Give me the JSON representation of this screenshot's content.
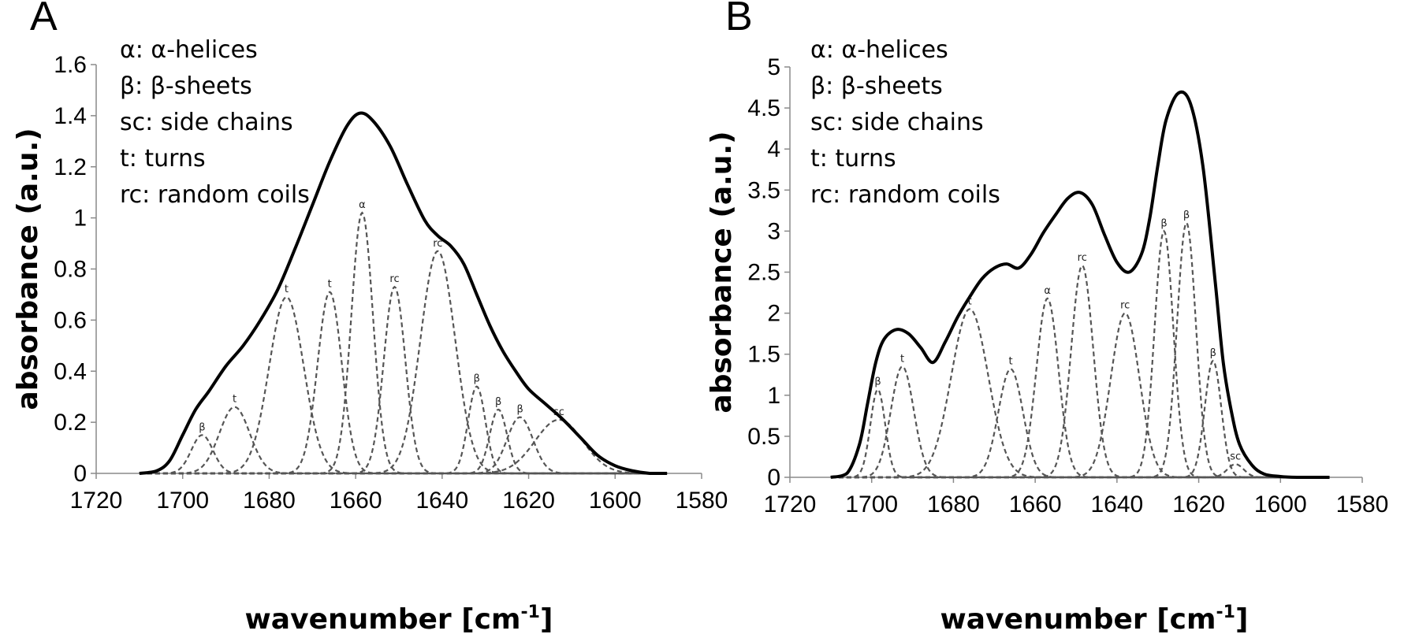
{
  "chart_data": [
    {
      "type": "line",
      "panel": "A",
      "xlabel": "wavenumber [cm-1]",
      "xlabel_main": "wavenumber [cm",
      "xlabel_sup": "-1",
      "xlabel_end": "]",
      "ylabel": "absorbance (a.u.)",
      "xlim": [
        1720,
        1580
      ],
      "ylim": [
        0,
        1.6
      ],
      "x_ticks": [
        1720,
        1700,
        1680,
        1660,
        1640,
        1620,
        1600,
        1580
      ],
      "y_ticks": [
        0,
        0.2,
        0.4,
        0.6,
        0.8,
        1,
        1.2,
        1.4,
        1.6
      ],
      "y_tick_labels": [
        "0",
        "0.2",
        "0.4",
        "0.6",
        "0.8",
        "1",
        "1.2",
        "1.4",
        "1.6"
      ],
      "x_range_curve": [
        1710,
        1588
      ],
      "legend": [
        "α: α-helices",
        "β: β-sheets",
        "sc: side chains",
        "t: turns",
        "rc: random coils"
      ],
      "series": [
        {
          "name": "envelope",
          "style": "solid",
          "x": [
            1710,
            1706,
            1703,
            1700,
            1697,
            1694,
            1690,
            1686,
            1682,
            1678,
            1674,
            1670,
            1666,
            1662,
            1659,
            1656,
            1652,
            1648,
            1644,
            1641,
            1638,
            1635,
            1632,
            1629,
            1626,
            1623,
            1620,
            1616,
            1612,
            1608,
            1604,
            1600,
            1596,
            1592,
            1588
          ],
          "y": [
            0,
            0.01,
            0.05,
            0.15,
            0.25,
            0.32,
            0.42,
            0.5,
            0.6,
            0.72,
            0.88,
            1.05,
            1.22,
            1.36,
            1.41,
            1.38,
            1.28,
            1.13,
            0.99,
            0.93,
            0.89,
            0.82,
            0.7,
            0.58,
            0.48,
            0.4,
            0.33,
            0.27,
            0.21,
            0.14,
            0.07,
            0.03,
            0.01,
            0,
            0
          ]
        }
      ],
      "components": [
        {
          "label": "β",
          "center": 1695.5,
          "height": 0.15,
          "width": 2.5
        },
        {
          "label": "t",
          "center": 1688,
          "height": 0.26,
          "width": 3.5
        },
        {
          "label": "t",
          "center": 1676,
          "height": 0.69,
          "width": 4
        },
        {
          "label": "t",
          "center": 1666,
          "height": 0.71,
          "width": 2.8
        },
        {
          "label": "α",
          "center": 1658.5,
          "height": 1.02,
          "width": 2.5
        },
        {
          "label": "rc",
          "center": 1651,
          "height": 0.73,
          "width": 2.5
        },
        {
          "label": "rc",
          "center": 1641,
          "height": 0.87,
          "width": 4
        },
        {
          "label": "β",
          "center": 1632,
          "height": 0.34,
          "width": 2
        },
        {
          "label": "β",
          "center": 1627,
          "height": 0.25,
          "width": 2
        },
        {
          "label": "β",
          "center": 1622,
          "height": 0.22,
          "width": 3
        },
        {
          "label": "sc",
          "center": 1613,
          "height": 0.21,
          "width": 5.5
        }
      ]
    },
    {
      "type": "line",
      "panel": "B",
      "xlabel": "wavenumber [cm-1]",
      "xlabel_main": "wavenumber [cm",
      "xlabel_sup": "-1",
      "xlabel_end": "]",
      "ylabel": "absorbance (a.u.)",
      "xlim": [
        1720,
        1580
      ],
      "ylim": [
        0,
        5
      ],
      "x_ticks": [
        1720,
        1700,
        1680,
        1660,
        1640,
        1620,
        1600,
        1580
      ],
      "y_ticks": [
        0,
        0.5,
        1,
        1.5,
        2,
        2.5,
        3,
        3.5,
        4,
        4.5,
        5
      ],
      "y_tick_labels": [
        "0",
        "0.5",
        "1",
        "1.5",
        "2",
        "2.5",
        "3",
        "3.5",
        "4",
        "4.5",
        "5"
      ],
      "x_range_curve": [
        1710,
        1588
      ],
      "legend": [
        "α: α-helices",
        "β: β-sheets",
        "sc: side chains",
        "t: turns",
        "rc: random coils"
      ],
      "series": [
        {
          "name": "envelope",
          "style": "solid",
          "x": [
            1710,
            1706,
            1703,
            1701,
            1699,
            1697,
            1694,
            1691,
            1688,
            1685,
            1682,
            1679,
            1676,
            1673,
            1670,
            1667,
            1664,
            1661,
            1658,
            1655,
            1652,
            1649,
            1646,
            1643,
            1640,
            1637,
            1634,
            1632,
            1630,
            1628,
            1625,
            1622,
            1619,
            1616,
            1614,
            1612,
            1610,
            1607,
            1604,
            1600,
            1596,
            1592,
            1588
          ],
          "y": [
            0,
            0.05,
            0.4,
            0.9,
            1.4,
            1.68,
            1.8,
            1.75,
            1.58,
            1.4,
            1.65,
            1.95,
            2.2,
            2.42,
            2.55,
            2.6,
            2.55,
            2.72,
            2.98,
            3.2,
            3.4,
            3.47,
            3.32,
            2.95,
            2.62,
            2.5,
            2.72,
            3.15,
            3.8,
            4.35,
            4.68,
            4.55,
            3.8,
            2.4,
            1.4,
            0.8,
            0.4,
            0.15,
            0.04,
            0.01,
            0,
            0,
            0
          ]
        }
      ],
      "components": [
        {
          "label": "β",
          "center": 1698.5,
          "height": 1.07,
          "width": 1.8
        },
        {
          "label": "t",
          "center": 1692.5,
          "height": 1.35,
          "width": 2.8
        },
        {
          "label": "t",
          "center": 1676,
          "height": 2.05,
          "width": 4.5
        },
        {
          "label": "t",
          "center": 1666,
          "height": 1.32,
          "width": 3
        },
        {
          "label": "α",
          "center": 1657,
          "height": 2.18,
          "width": 2.7
        },
        {
          "label": "rc",
          "center": 1648.5,
          "height": 2.58,
          "width": 2.7
        },
        {
          "label": "rc",
          "center": 1638,
          "height": 2.0,
          "width": 3.5
        },
        {
          "label": "β",
          "center": 1628.5,
          "height": 3.0,
          "width": 2.3
        },
        {
          "label": "β",
          "center": 1623,
          "height": 3.1,
          "width": 2.3
        },
        {
          "label": "β",
          "center": 1616.5,
          "height": 1.42,
          "width": 2
        },
        {
          "label": "sc",
          "center": 1611,
          "height": 0.16,
          "width": 2
        }
      ]
    }
  ]
}
